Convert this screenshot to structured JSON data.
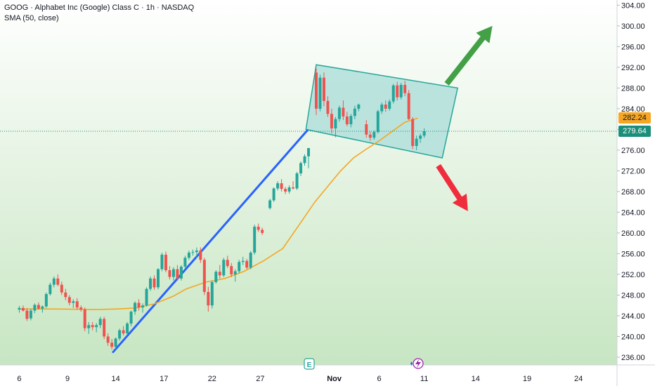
{
  "header": {
    "title": "GOOG · Alphabet Inc (Google) Class C · 1h · NASDAQ",
    "indicator": "SMA (50, close)"
  },
  "colors": {
    "up": "#26a69a",
    "down": "#ef5350",
    "sma": "#f5a623",
    "trendline": "#2962ff",
    "channel_fill": "#b2dfdb",
    "channel_stroke": "#26a69a",
    "arrow_up": "#43a047",
    "arrow_down": "#ef2d3d",
    "sma_tag": "#f5a623",
    "price_tag": "#1b8e7a"
  },
  "price_tags": {
    "sma_value": "282.24",
    "last_price": "279.64"
  },
  "markers": {
    "earnings": "E"
  },
  "chart_data": {
    "type": "candlestick",
    "title": "",
    "symbol": "GOOG",
    "interval": "1h",
    "exchange": "NASDAQ",
    "ylim": [
      234.5,
      305
    ],
    "y_ticks": [
      "236.00",
      "240.00",
      "244.00",
      "248.00",
      "252.00",
      "256.00",
      "260.00",
      "264.00",
      "268.00",
      "272.00",
      "276.00",
      "280.00",
      "284.00",
      "288.00",
      "292.00",
      "296.00",
      "300.00",
      "304.00"
    ],
    "x_ticks": [
      "6",
      "9",
      "14",
      "17",
      "22",
      "27",
      "Nov",
      "6",
      "11",
      "14",
      "19",
      "24"
    ],
    "x_tick_pos": [
      0,
      7.5,
      15,
      22.5,
      30,
      37.5,
      49,
      56,
      63,
      71,
      79,
      87
    ],
    "x_range": [
      -3,
      93
    ],
    "series": [
      {
        "name": "SMA (50, close)",
        "values": [
          [
            0,
            245.3
          ],
          [
            6,
            245.3
          ],
          [
            12,
            245.2
          ],
          [
            15,
            245.3
          ],
          [
            18,
            245.5
          ],
          [
            21,
            246.3
          ],
          [
            24,
            247.8
          ],
          [
            26,
            249.2
          ],
          [
            29,
            250.5
          ],
          [
            32,
            251.2
          ],
          [
            35,
            252.6
          ],
          [
            38,
            254.6
          ],
          [
            41,
            257.0
          ],
          [
            43.5,
            261.5
          ],
          [
            46,
            266.0
          ],
          [
            48,
            269.0
          ],
          [
            50,
            272.0
          ],
          [
            52,
            274.5
          ],
          [
            54,
            276.2
          ],
          [
            56,
            277.8
          ],
          [
            58,
            279.6
          ],
          [
            60,
            281.4
          ],
          [
            62,
            282.2
          ]
        ]
      }
    ],
    "candles": [
      [
        0,
        245.2,
        245.9,
        244.6,
        245.5
      ],
      [
        0.6,
        245.5,
        246.0,
        244.8,
        245.0
      ],
      [
        1.2,
        245.0,
        245.5,
        243.0,
        243.4
      ],
      [
        1.8,
        243.5,
        245.4,
        243.1,
        245.0
      ],
      [
        2.4,
        245.0,
        246.4,
        244.5,
        246.1
      ],
      [
        3.0,
        246.1,
        246.6,
        245.2,
        245.4
      ],
      [
        3.6,
        245.4,
        246.0,
        244.6,
        245.8
      ],
      [
        4.2,
        245.8,
        248.5,
        245.5,
        248.2
      ],
      [
        4.8,
        248.2,
        250.4,
        247.9,
        250.0
      ],
      [
        5.4,
        250.0,
        251.6,
        249.5,
        251.2
      ],
      [
        6.0,
        251.2,
        252.0,
        249.7,
        250.0
      ],
      [
        6.6,
        250.0,
        250.6,
        248.0,
        248.5
      ],
      [
        7.2,
        248.5,
        249.2,
        247.0,
        247.6
      ],
      [
        7.8,
        247.6,
        248.0,
        246.0,
        246.5
      ],
      [
        8.4,
        246.5,
        247.2,
        245.5,
        246.8
      ],
      [
        9.0,
        246.8,
        247.4,
        245.2,
        245.6
      ],
      [
        9.6,
        245.6,
        246.0,
        244.8,
        245.2
      ],
      [
        10.2,
        245.2,
        245.6,
        241.0,
        241.6
      ],
      [
        10.8,
        241.6,
        242.8,
        240.5,
        242.2
      ],
      [
        11.4,
        242.2,
        242.8,
        241.2,
        241.8
      ],
      [
        12.0,
        241.8,
        242.6,
        240.8,
        242.2
      ],
      [
        12.6,
        242.2,
        243.8,
        241.6,
        243.4
      ],
      [
        13.2,
        243.4,
        243.8,
        239.5,
        240.0
      ],
      [
        13.8,
        240.0,
        240.6,
        238.2,
        238.8
      ],
      [
        14.4,
        238.8,
        239.5,
        237.5,
        238.0
      ],
      [
        15.0,
        238.0,
        239.8,
        237.6,
        239.6
      ],
      [
        15.6,
        239.6,
        241.5,
        239.2,
        241.2
      ],
      [
        16.2,
        241.2,
        242.0,
        240.2,
        240.6
      ],
      [
        16.8,
        240.6,
        242.8,
        240.3,
        242.5
      ],
      [
        17.4,
        242.5,
        245.0,
        242.0,
        244.8
      ],
      [
        18.0,
        244.8,
        246.8,
        244.2,
        246.5
      ],
      [
        18.6,
        246.5,
        247.2,
        245.0,
        245.6
      ],
      [
        19.2,
        245.6,
        246.4,
        244.6,
        246.0
      ],
      [
        19.8,
        246.0,
        249.5,
        245.8,
        249.2
      ],
      [
        20.4,
        249.2,
        251.6,
        248.8,
        251.2
      ],
      [
        21.0,
        251.2,
        251.8,
        249.0,
        249.5
      ],
      [
        21.6,
        249.5,
        253.2,
        249.1,
        253.0
      ],
      [
        22.2,
        253.0,
        256.2,
        252.6,
        255.8
      ],
      [
        22.8,
        255.8,
        256.4,
        252.4,
        252.8
      ],
      [
        23.4,
        252.8,
        253.6,
        251.0,
        251.5
      ],
      [
        24.0,
        251.5,
        253.4,
        250.8,
        253.0
      ],
      [
        24.6,
        253.0,
        253.8,
        250.8,
        251.2
      ],
      [
        25.2,
        251.2,
        253.8,
        250.8,
        253.5
      ],
      [
        25.8,
        253.5,
        255.6,
        253.0,
        255.2
      ],
      [
        26.4,
        255.2,
        256.6,
        254.8,
        256.2
      ],
      [
        27.0,
        256.2,
        256.8,
        255.6,
        256.3
      ],
      [
        27.6,
        256.3,
        257.2,
        255.2,
        256.6
      ],
      [
        28.2,
        256.6,
        257.2,
        254.2,
        254.8
      ],
      [
        28.8,
        254.8,
        255.2,
        248.0,
        248.6
      ],
      [
        29.4,
        248.6,
        249.6,
        244.8,
        246.0
      ],
      [
        30.0,
        246.0,
        250.8,
        245.4,
        250.5
      ],
      [
        30.6,
        250.5,
        252.8,
        250.2,
        252.5
      ],
      [
        31.2,
        252.5,
        253.8,
        251.2,
        251.8
      ],
      [
        31.8,
        251.8,
        255.2,
        251.5,
        254.8
      ],
      [
        32.4,
        254.8,
        255.6,
        253.2,
        253.6
      ],
      [
        33.0,
        253.6,
        254.2,
        251.5,
        252.0
      ],
      [
        33.6,
        252.0,
        253.0,
        250.6,
        252.6
      ],
      [
        34.2,
        252.6,
        254.8,
        252.2,
        254.4
      ],
      [
        34.8,
        254.4,
        255.4,
        253.8,
        254.6
      ],
      [
        35.4,
        254.6,
        255.0,
        253.0,
        253.3
      ],
      [
        36.0,
        253.3,
        256.5,
        253.0,
        256.2
      ],
      [
        36.6,
        256.2,
        261.6,
        255.8,
        261.2
      ],
      [
        37.2,
        261.2,
        261.8,
        260.2,
        260.6
      ],
      [
        37.8,
        260.6,
        261.0,
        259.6,
        260.0
      ],
      [
        39.0,
        264.8,
        266.6,
        264.5,
        266.3
      ],
      [
        39.6,
        266.3,
        268.8,
        266.0,
        268.6
      ],
      [
        40.2,
        268.6,
        270.0,
        268.2,
        269.6
      ],
      [
        40.8,
        269.6,
        270.4,
        268.0,
        268.5
      ],
      [
        41.4,
        268.5,
        268.9,
        267.5,
        268.0
      ],
      [
        42.0,
        268.0,
        269.2,
        267.6,
        268.8
      ],
      [
        42.6,
        268.8,
        270.0,
        268.4,
        268.6
      ],
      [
        43.2,
        268.6,
        271.8,
        268.3,
        271.5
      ],
      [
        43.8,
        271.5,
        273.8,
        271.0,
        273.5
      ],
      [
        44.4,
        273.5,
        275.2,
        273.0,
        274.8
      ],
      [
        45.0,
        274.8,
        275.8,
        272.5,
        276.4
      ],
      [
        46.2,
        291.0,
        291.8,
        282.8,
        284.0
      ],
      [
        46.8,
        284.0,
        290.6,
        283.5,
        290.0
      ],
      [
        47.4,
        290.0,
        291.0,
        284.5,
        285.5
      ],
      [
        48.0,
        285.5,
        286.4,
        282.4,
        283.0
      ],
      [
        48.6,
        283.0,
        284.0,
        279.2,
        280.2
      ],
      [
        49.2,
        280.2,
        282.4,
        278.5,
        282.0
      ],
      [
        49.8,
        282.0,
        284.6,
        281.5,
        284.2
      ],
      [
        50.4,
        284.2,
        285.6,
        281.8,
        282.5
      ],
      [
        51.0,
        282.5,
        283.4,
        280.6,
        281.0
      ],
      [
        51.6,
        281.0,
        283.0,
        280.4,
        282.6
      ],
      [
        52.2,
        282.6,
        284.6,
        282.0,
        284.0
      ],
      [
        52.8,
        284.0,
        285.0,
        283.5,
        284.8
      ],
      [
        54.0,
        281.0,
        281.8,
        278.4,
        279.0
      ],
      [
        54.6,
        279.0,
        279.6,
        277.8,
        278.4
      ],
      [
        55.2,
        278.4,
        279.8,
        278.0,
        279.5
      ],
      [
        55.8,
        279.5,
        283.8,
        279.2,
        283.5
      ],
      [
        56.4,
        283.5,
        285.2,
        283.0,
        284.8
      ],
      [
        57.0,
        284.8,
        285.6,
        283.4,
        284.0
      ],
      [
        57.6,
        284.0,
        285.8,
        283.6,
        285.4
      ],
      [
        58.2,
        285.4,
        288.8,
        285.0,
        288.5
      ],
      [
        58.8,
        288.5,
        289.2,
        285.6,
        286.2
      ],
      [
        59.4,
        286.2,
        289.0,
        285.8,
        288.6
      ],
      [
        60.0,
        288.6,
        289.4,
        286.4,
        287.0
      ],
      [
        60.6,
        287.0,
        287.6,
        281.8,
        282.0
      ],
      [
        61.2,
        282.0,
        282.4,
        276.2,
        276.8
      ],
      [
        61.8,
        276.8,
        278.8,
        276.0,
        278.2
      ],
      [
        62.4,
        278.2,
        279.2,
        277.4,
        278.8
      ],
      [
        63.0,
        278.8,
        280.2,
        278.4,
        279.64
      ]
    ],
    "annotations": [
      {
        "type": "trendline",
        "from": [
          14.6,
          237.0
        ],
        "to": [
          44.8,
          279.8
        ]
      },
      {
        "type": "channel",
        "corners": [
          [
            44.6,
            280.0
          ],
          [
            46.2,
            292.5
          ],
          [
            68.2,
            288.0
          ],
          [
            65.8,
            274.5
          ]
        ]
      },
      {
        "type": "arrow_up",
        "from": [
          66.5,
          288.8
        ],
        "to": [
          73.6,
          300.0
        ]
      },
      {
        "type": "arrow_down",
        "from": [
          65.2,
          273.0
        ],
        "to": [
          69.8,
          264.2
        ]
      }
    ],
    "grid": false,
    "background": "gradient-green"
  }
}
